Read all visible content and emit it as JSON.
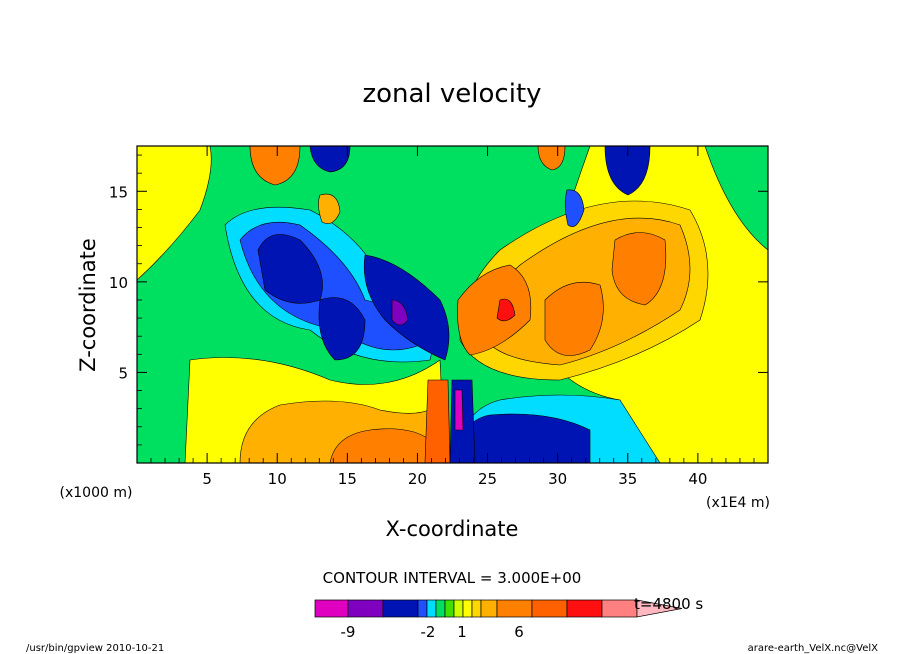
{
  "chart_data": {
    "type": "heatmap",
    "title": "zonal velocity",
    "xlabel": "X-coordinate",
    "ylabel": "Z-coordinate",
    "x_scale_note": "(x1E4 m)",
    "y_scale_note": "(x1000 m)",
    "xlim": [
      0,
      45
    ],
    "ylim": [
      0,
      17.5
    ],
    "x_ticks": [
      "5",
      "10",
      "15",
      "20",
      "25",
      "30",
      "35",
      "40"
    ],
    "y_ticks": [
      "5",
      "10",
      "15"
    ],
    "contour_interval_text": "CONTOUR INTERVAL = 3.000E+00",
    "time_text": "t=4800 s",
    "colorbar": {
      "tick_labels": [
        "-9",
        "-2",
        "1",
        "6"
      ],
      "colors": [
        "#e000c0",
        "#8000c0",
        "#0014b4",
        "#1e50ff",
        "#00ddff",
        "#00e060",
        "#40e000",
        "#ccff00",
        "#ffff00",
        "#ffd700",
        "#ffb000",
        "#ff8000",
        "#ff6000",
        "#ff1010",
        "#ff8080",
        "#ffb8c0"
      ]
    },
    "grid": false
  },
  "footer": {
    "left": "/usr/bin/gpview   2010-10-21",
    "right": "arare-earth_VelX.nc@VelX"
  },
  "colors": {
    "frame": "#000000",
    "background": "#ffffff"
  }
}
